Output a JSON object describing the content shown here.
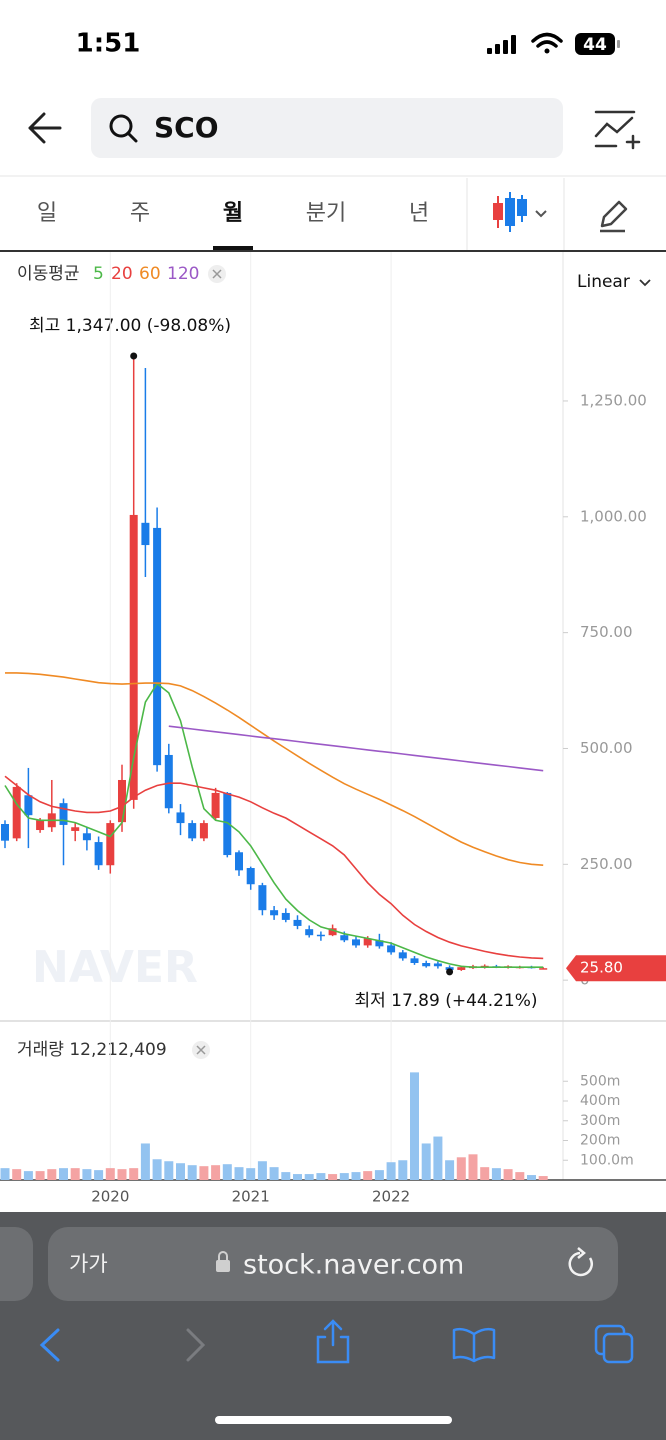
{
  "status_bar": {
    "time": "1:51",
    "battery": "44"
  },
  "search": {
    "query": "SCO"
  },
  "tabs": [
    "일",
    "주",
    "월",
    "분기",
    "년"
  ],
  "active_tab": 2,
  "chart_data": {
    "type": "candlestick",
    "moving_average_label": "이동평균",
    "scale_label": "Linear",
    "watermark": "NAVER",
    "high_label": "최고 1,347.00 (-98.08%)",
    "low_label": "최저  17.89 (+44.21%)",
    "high_index": 11,
    "low_index": 38,
    "up_color": "#e8403f",
    "down_color": "#1a7ce8",
    "categories": [
      null,
      null,
      null,
      null,
      null,
      null,
      null,
      null,
      null,
      null,
      null,
      null,
      null,
      null,
      null,
      null,
      null,
      null,
      null,
      null,
      null,
      null,
      null,
      null,
      null,
      null,
      null,
      null,
      null,
      null,
      null,
      null,
      null,
      null,
      null,
      null,
      null,
      null,
      null,
      null,
      null,
      null,
      null,
      null,
      null,
      null,
      null
    ],
    "open": [
      337,
      306,
      399,
      324,
      330,
      382,
      322,
      317,
      298,
      248,
      341,
      389,
      987,
      976,
      486,
      362,
      339,
      306,
      350,
      404,
      276,
      242,
      205,
      151,
      145,
      130,
      110,
      98,
      97,
      97,
      88,
      75,
      86,
      75,
      60,
      47,
      37,
      36,
      28,
      22,
      26,
      27,
      30,
      27,
      27,
      29,
      25
    ],
    "high": [
      345,
      425,
      458,
      350,
      432,
      392,
      340,
      330,
      310,
      345,
      465,
      1347,
      1321,
      1020,
      510,
      380,
      345,
      345,
      415,
      406,
      280,
      245,
      210,
      160,
      155,
      140,
      118,
      105,
      120,
      105,
      95,
      95,
      100,
      82,
      65,
      52,
      42,
      40,
      32,
      31,
      33,
      34,
      33,
      32,
      31,
      31,
      28
    ],
    "low": [
      285,
      300,
      285,
      318,
      320,
      248,
      300,
      280,
      238,
      230,
      320,
      370,
      870,
      450,
      360,
      313,
      300,
      300,
      345,
      265,
      225,
      195,
      140,
      130,
      125,
      110,
      92,
      85,
      95,
      82,
      70,
      70,
      68,
      55,
      42,
      33,
      27,
      25,
      17.89,
      20,
      24,
      25,
      26,
      25,
      25,
      25,
      23
    ],
    "close": [
      301,
      417,
      356,
      345,
      360,
      335,
      330,
      302,
      248,
      339,
      432,
      1004,
      939,
      464,
      371,
      339,
      306,
      339,
      404,
      270,
      237,
      207,
      151,
      140,
      130,
      117,
      97,
      95,
      112,
      86,
      75,
      90,
      73,
      60,
      47,
      37,
      30,
      30,
      22,
      28,
      30,
      31,
      28,
      30,
      29,
      27,
      25.8
    ],
    "xticks": [
      {
        "value": 9,
        "label": "2020"
      },
      {
        "value": 21,
        "label": "2021"
      },
      {
        "value": 33,
        "label": "2022"
      }
    ],
    "xgrid": true,
    "ylim": [
      -86,
      1565
    ],
    "yticks": [
      0,
      {
        "value": 250,
        "label": "250.00"
      },
      {
        "value": 500,
        "label": "500.00"
      },
      {
        "value": 750,
        "label": "750.00"
      },
      {
        "value": 1000,
        "label": "1,000.00"
      },
      {
        "value": 1250,
        "label": "1,250.00"
      }
    ],
    "last_price": {
      "value": 25.8,
      "label": "25.80",
      "color": "#e8403f"
    },
    "moving_averages": [
      {
        "name": 5,
        "color": "#4cb848",
        "values": [
          420,
          380,
          350,
          345,
          345,
          345,
          340,
          330,
          320,
          310,
          340,
          480,
          600,
          640,
          620,
          560,
          460,
          370,
          345,
          340,
          320,
          290,
          250,
          210,
          175,
          150,
          130,
          115,
          108,
          100,
          95,
          90,
          85,
          80,
          70,
          60,
          50,
          42,
          35,
          30,
          28,
          28,
          28,
          28,
          28,
          28,
          28
        ]
      },
      {
        "name": 20,
        "color": "#e8403f",
        "values": [
          440,
          420,
          400,
          385,
          375,
          370,
          365,
          362,
          362,
          365,
          375,
          395,
          410,
          420,
          425,
          425,
          420,
          415,
          410,
          402,
          395,
          385,
          372,
          360,
          350,
          335,
          320,
          305,
          290,
          270,
          240,
          210,
          185,
          165,
          140,
          120,
          105,
          92,
          82,
          74,
          68,
          62,
          57,
          53,
          50,
          48,
          47
        ]
      },
      {
        "name": 60,
        "color": "#ef8a24",
        "values": [
          663,
          663,
          662,
          660,
          657,
          654,
          650,
          646,
          642,
          640,
          639,
          640,
          641,
          641,
          640,
          635,
          625,
          612,
          598,
          583,
          567,
          550,
          533,
          516,
          500,
          484,
          468,
          453,
          438,
          424,
          412,
          401,
          390,
          378,
          366,
          353,
          339,
          325,
          311,
          298,
          287,
          277,
          268,
          260,
          254,
          250,
          248
        ]
      },
      {
        "name": 120,
        "color": "#9b59c6",
        "values": [
          null,
          null,
          null,
          null,
          null,
          null,
          null,
          null,
          null,
          null,
          null,
          null,
          null,
          null,
          548,
          545,
          542,
          539,
          536,
          533,
          530,
          527,
          524,
          521,
          518,
          515,
          512,
          509,
          506,
          503,
          500,
          497,
          494,
          491,
          488,
          485,
          482,
          479,
          476,
          473,
          470,
          467,
          464,
          461,
          458,
          455,
          452
        ]
      }
    ],
    "volume": {
      "label": "거래량 12,212,409",
      "up_color": "#f4a3a3",
      "down_color": "#93c3f0",
      "values": [
        60,
        55,
        45,
        45,
        55,
        60,
        60,
        55,
        50,
        60,
        55,
        60,
        185,
        105,
        95,
        85,
        75,
        70,
        75,
        80,
        65,
        60,
        95,
        65,
        40,
        30,
        30,
        35,
        30,
        35,
        40,
        45,
        50,
        90,
        100,
        545,
        185,
        220,
        100,
        115,
        130,
        65,
        60,
        55,
        40,
        25,
        20
      ],
      "ylim": [
        0,
        600
      ],
      "yticks": [
        {
          "value": 100,
          "label": "100.0m"
        },
        {
          "value": 200,
          "label": "200m"
        },
        {
          "value": 300,
          "label": "300m"
        },
        {
          "value": 400,
          "label": "400m"
        },
        {
          "value": 500,
          "label": "500m"
        }
      ]
    }
  },
  "browser": {
    "text_size": "가가",
    "url": "stock.naver.com"
  }
}
